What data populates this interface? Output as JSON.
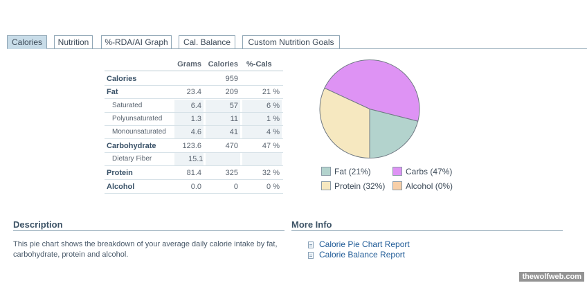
{
  "tabs": [
    {
      "label": "Calories",
      "active": true
    },
    {
      "label": "Nutrition",
      "active": false
    },
    {
      "label": "%-RDA/AI Graph",
      "active": false
    },
    {
      "label": "Cal. Balance",
      "active": false
    },
    {
      "label": "Custom Nutrition Goals",
      "active": false
    }
  ],
  "table": {
    "headers": [
      "Grams",
      "Calories",
      "%-Cals"
    ],
    "rows": [
      {
        "label": "Calories",
        "grams": "",
        "calories": "959",
        "pct": ""
      },
      {
        "label": "Fat",
        "grams": "23.4",
        "calories": "209",
        "pct": "21 %"
      },
      {
        "label": "Saturated",
        "grams": "6.4",
        "calories": "57",
        "pct": "6 %"
      },
      {
        "label": "Polyunsaturated",
        "grams": "1.3",
        "calories": "11",
        "pct": "1 %"
      },
      {
        "label": "Monounsaturated",
        "grams": "4.6",
        "calories": "41",
        "pct": "4 %"
      },
      {
        "label": "Carbohydrate",
        "grams": "123.6",
        "calories": "470",
        "pct": "47 %"
      },
      {
        "label": "Dietary Fiber",
        "grams": "15.1",
        "calories": "",
        "pct": ""
      },
      {
        "label": "Protein",
        "grams": "81.4",
        "calories": "325",
        "pct": "32 %"
      },
      {
        "label": "Alcohol",
        "grams": "0.0",
        "calories": "0",
        "pct": "0 %"
      }
    ]
  },
  "chart_data": {
    "type": "pie",
    "slices": [
      {
        "name": "Fat",
        "value": 21,
        "color": "#b3d3cd"
      },
      {
        "name": "Carbs",
        "value": 47,
        "color": "#de93f4"
      },
      {
        "name": "Protein",
        "value": 32,
        "color": "#f6e8c0"
      },
      {
        "name": "Alcohol",
        "value": 0,
        "color": "#f7cfa8"
      }
    ]
  },
  "legend": [
    {
      "label": "Fat  (21%)",
      "color": "#b3d3cd"
    },
    {
      "label": "Carbs  (47%)",
      "color": "#de93f4"
    },
    {
      "label": "Protein  (32%)",
      "color": "#f6e8c0"
    },
    {
      "label": "Alcohol  (0%)",
      "color": "#f7cfa8"
    }
  ],
  "description": {
    "title": "Description",
    "text": "This pie chart shows the breakdown of your average daily calorie intake by fat, carbohydrate, protein and alcohol."
  },
  "more_info": {
    "title": "More Info",
    "links": [
      "Calorie Pie Chart Report",
      "Calorie Balance Report"
    ]
  },
  "watermark": "thewolfweb.com"
}
